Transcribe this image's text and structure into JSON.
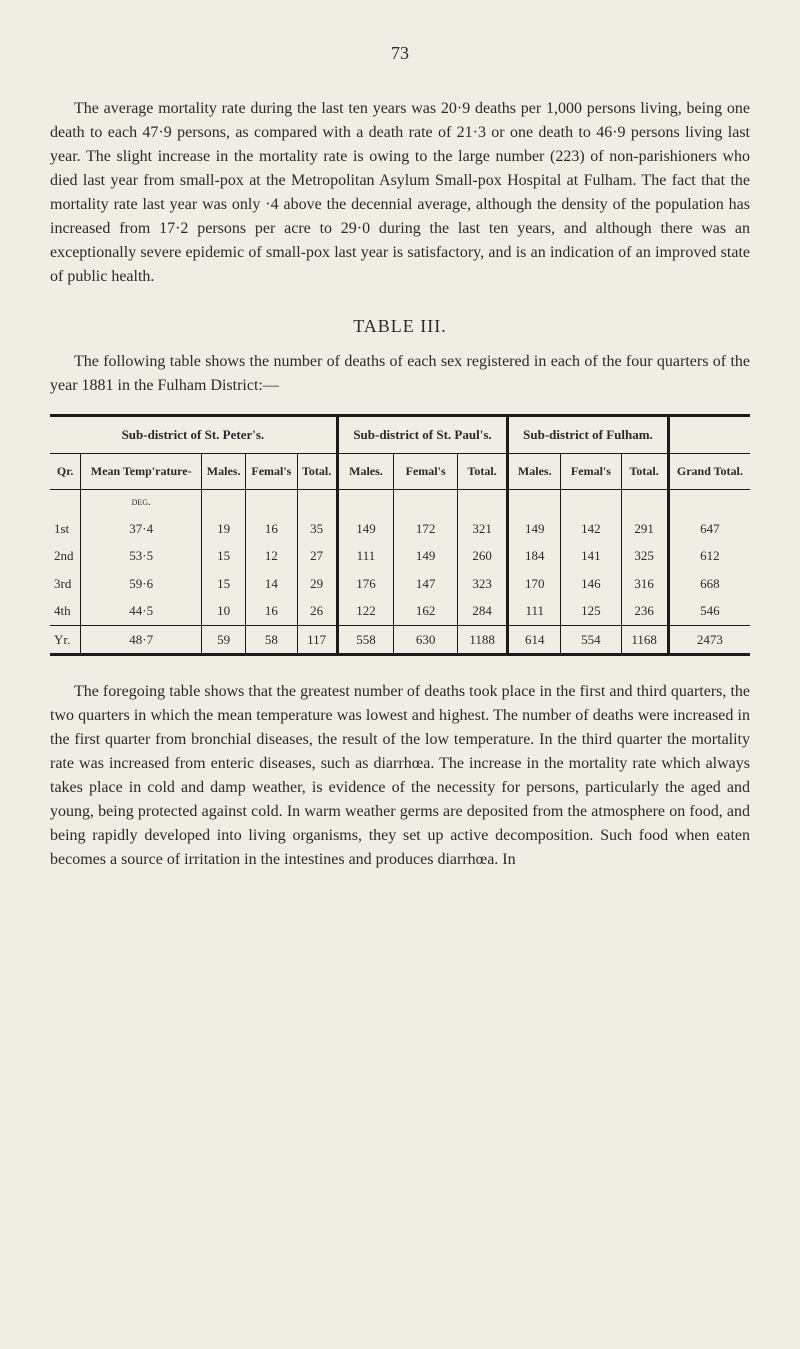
{
  "page_number": "73",
  "paragraph1": "The average mortality rate during the last ten years was 20·9 deaths per 1,000 persons living, being one death to each 47·9 persons, as compared with a death rate of 21·3 or one death to 46·9 persons living last year. The slight increase in the mortality rate is owing to the large number (223) of non-parishioners who died last year from small-pox at the Metropolitan Asylum Small-pox Hospital at Fulham. The fact that the mortality rate last year was only ·4 above the decennial average, although the density of the population has increased from 17·2 persons per acre to 29·0 during the last ten years, and although there was an exceptionally severe epidemic of small-pox last year is satis­factory, and is an indication of an improved state of public health.",
  "table_title": "TABLE III.",
  "table_intro": "The following table shows the number of deaths of each sex registered in each of the four quarters of the year 1881 in the Fulham District:—",
  "table": {
    "group_headers": [
      "Sub-district of St. Peter's.",
      "Sub-district of St. Paul's.",
      "Sub-district of Fulham."
    ],
    "col_headers": {
      "qr": "Qr.",
      "temp": "Mean Temp'r­ature-",
      "males": "Males.",
      "females": "Femal's",
      "total": "Total.",
      "grand_total": "Grand Total."
    },
    "deg_label": "deg.",
    "rows": [
      {
        "qr": "1st",
        "temp": "37·4",
        "peters": {
          "m": "19",
          "f": "16",
          "t": "35"
        },
        "pauls": {
          "m": "149",
          "f": "172",
          "t": "321"
        },
        "fulham": {
          "m": "149",
          "f": "142",
          "t": "291"
        },
        "grand": "647"
      },
      {
        "qr": "2nd",
        "temp": "53·5",
        "peters": {
          "m": "15",
          "f": "12",
          "t": "27"
        },
        "pauls": {
          "m": "111",
          "f": "149",
          "t": "260"
        },
        "fulham": {
          "m": "184",
          "f": "141",
          "t": "325"
        },
        "grand": "612"
      },
      {
        "qr": "3rd",
        "temp": "59·6",
        "peters": {
          "m": "15",
          "f": "14",
          "t": "29"
        },
        "pauls": {
          "m": "176",
          "f": "147",
          "t": "323"
        },
        "fulham": {
          "m": "170",
          "f": "146",
          "t": "316"
        },
        "grand": "668"
      },
      {
        "qr": "4th",
        "temp": "44·5",
        "peters": {
          "m": "10",
          "f": "16",
          "t": "26"
        },
        "pauls": {
          "m": "122",
          "f": "162",
          "t": "284"
        },
        "fulham": {
          "m": "111",
          "f": "125",
          "t": "236"
        },
        "grand": "546"
      }
    ],
    "year_row": {
      "qr": "Yr.",
      "temp": "48·7",
      "peters": {
        "m": "59",
        "f": "58",
        "t": "117"
      },
      "pauls": {
        "m": "558",
        "f": "630",
        "t": "1188"
      },
      "fulham": {
        "m": "614",
        "f": "554",
        "t": "1168"
      },
      "grand": "2473"
    }
  },
  "paragraph2": "The foregoing table shows that the greatest number of deaths took place in the first and third quarters, the two quarters in which the mean temperature was lowest and highest. The num­ber of deaths were increased in the first quarter from bronchial diseases, the result of the low temperature. In the third quarter the mortality rate was increased from enteric diseases, such as diarrhœa. The increase in the mortality rate which always takes place in cold and damp weather, is evidence of the necessity for persons, particularly the aged and young, being protected against cold. In warm weather germs are deposited from the atmosphere on food, and being rapidly developed into living organisms, they set up active decomposition. Such food when eaten becomes a source of irritation in the intestines and produces diarrhœa. In",
  "colors": {
    "background": "#f0ede4",
    "text": "#2a2a2a",
    "rule": "#1a1a1a"
  }
}
